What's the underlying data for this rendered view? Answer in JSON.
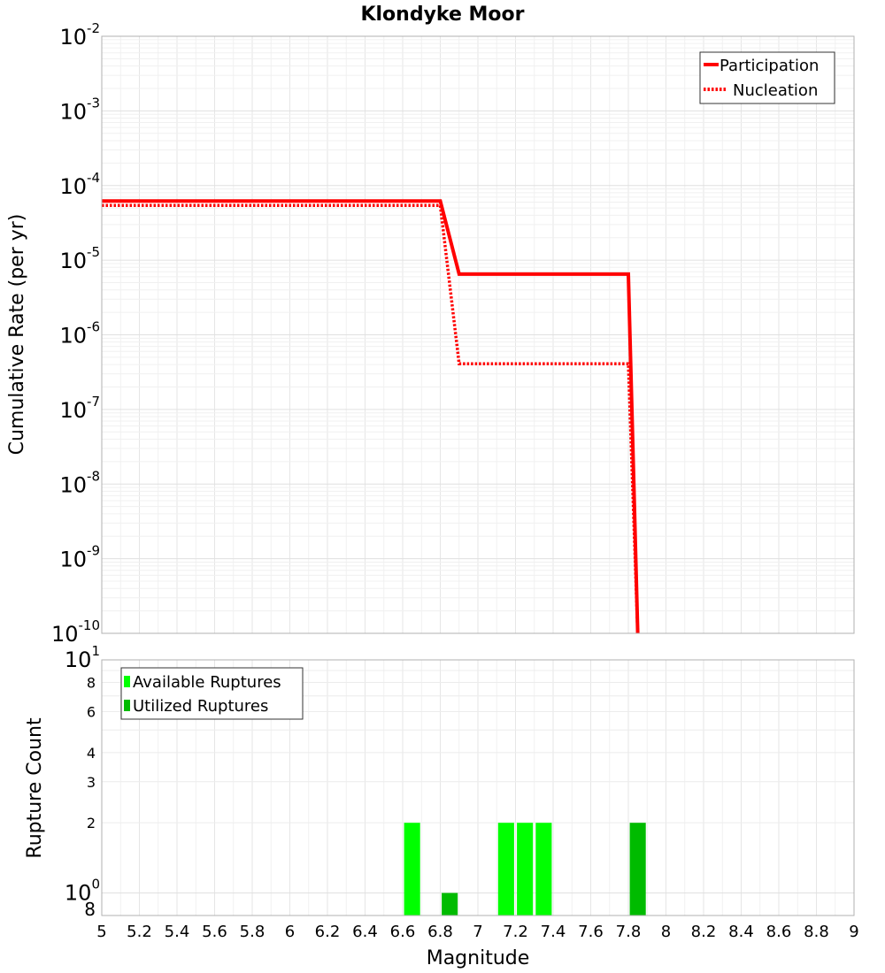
{
  "chart_data": [
    {
      "type": "line",
      "title": "Klondyke Moor",
      "xlabel": "",
      "ylabel": "Cumulative Rate (per yr)",
      "xlim": [
        5,
        9
      ],
      "ylim": [
        1e-10,
        0.01
      ],
      "yscale": "log",
      "y_tick_labels": [
        {
          "base": "10",
          "exp": "-2"
        },
        {
          "base": "10",
          "exp": "-3"
        },
        {
          "base": "10",
          "exp": "-4"
        },
        {
          "base": "10",
          "exp": "-5"
        },
        {
          "base": "10",
          "exp": "-6"
        },
        {
          "base": "10",
          "exp": "-7"
        },
        {
          "base": "10",
          "exp": "-8"
        },
        {
          "base": "10",
          "exp": "-9"
        },
        {
          "base": "10",
          "exp": "-10"
        }
      ],
      "legend_position": "top-right",
      "series": [
        {
          "name": "Participation",
          "style": "solid",
          "color": "#ff0000",
          "x": [
            5.0,
            6.8,
            6.9,
            7.8,
            7.85
          ],
          "y": [
            6.2e-05,
            6.2e-05,
            6.5e-06,
            6.5e-06,
            1e-10
          ]
        },
        {
          "name": "Nucleation",
          "style": "dotted",
          "color": "#ff0000",
          "x": [
            5.0,
            6.8,
            6.9,
            7.8,
            7.85
          ],
          "y": [
            5.4e-05,
            5.4e-05,
            4.1e-07,
            4.1e-07,
            1e-10
          ]
        }
      ]
    },
    {
      "type": "bar",
      "title": "",
      "xlabel": "Magnitude",
      "ylabel": "Rupture Count",
      "xlim": [
        5,
        9
      ],
      "ylim": [
        0.8,
        10
      ],
      "yscale": "log",
      "x_ticks": [
        "5",
        "5.2",
        "5.4",
        "5.6",
        "5.8",
        "6",
        "6.2",
        "6.4",
        "6.6",
        "6.8",
        "7",
        "7.2",
        "7.4",
        "7.6",
        "7.8",
        "8",
        "8.2",
        "8.4",
        "8.6",
        "8.8",
        "9"
      ],
      "y_tick_labels": [
        {
          "value": 10,
          "base": "10",
          "exp": "1"
        },
        {
          "value": 8,
          "label": "8"
        },
        {
          "value": 6,
          "label": "6"
        },
        {
          "value": 4,
          "label": "4"
        },
        {
          "value": 3,
          "label": "3"
        },
        {
          "value": 2,
          "label": "2"
        },
        {
          "value": 1,
          "base": "10",
          "exp": "0"
        },
        {
          "value": 0.8,
          "label": "8"
        }
      ],
      "bar_width": 0.085,
      "legend_position": "top-left",
      "series": [
        {
          "name": "Available Ruptures",
          "color": "#00ff00",
          "x": [
            6.65,
            7.15,
            7.25,
            7.35
          ],
          "values": [
            2,
            2,
            2,
            2
          ]
        },
        {
          "name": "Utilized Ruptures",
          "color": "#00bb00",
          "x": [
            6.85,
            7.85
          ],
          "values": [
            1,
            2
          ]
        }
      ]
    }
  ]
}
